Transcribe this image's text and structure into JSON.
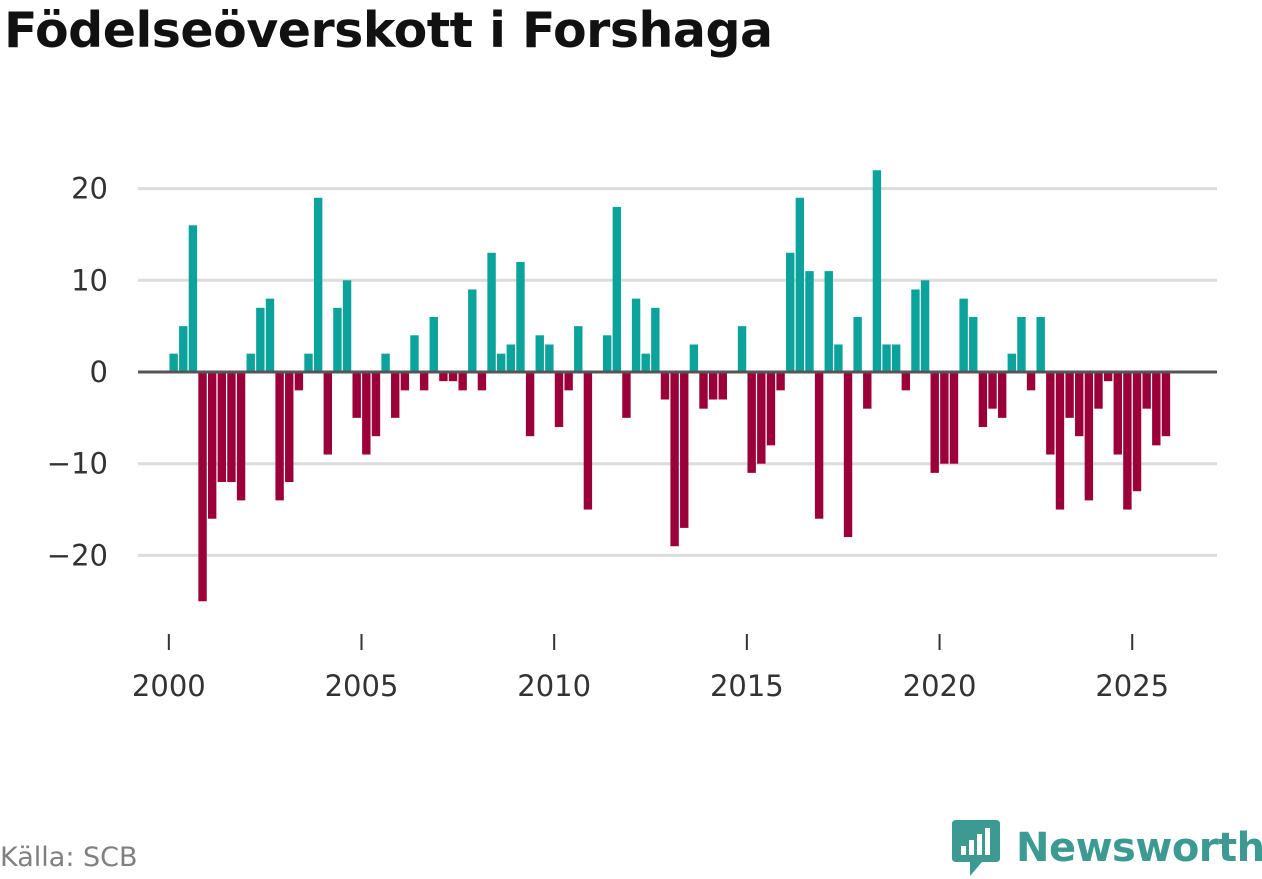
{
  "colors": {
    "positive": "#0ba39b",
    "negative": "#9c0039",
    "grid": "#dcdcdc",
    "zero": "#555555",
    "brand": "#3d9a92"
  },
  "chart_data": {
    "type": "bar",
    "title": "Födelseöverskott i Forshaga",
    "xlabel": "",
    "ylabel": "",
    "ylim": [
      -28,
      23
    ],
    "xlim": [
      1999.2,
      2027.2
    ],
    "yticks": [
      20,
      10,
      0,
      -10,
      -20
    ],
    "ytick_labels": [
      "20",
      "10",
      "0",
      "−10",
      "−20"
    ],
    "xticks": [
      2000,
      2005,
      2010,
      2015,
      2020,
      2025
    ],
    "xtick_labels": [
      "2000",
      "2005",
      "2010",
      "2015",
      "2020",
      "2025"
    ],
    "x": [
      2000.125,
      2000.375,
      2000.625,
      2000.875,
      2001.125,
      2001.375,
      2001.625,
      2001.875,
      2002.125,
      2002.375,
      2002.625,
      2002.875,
      2003.125,
      2003.375,
      2003.625,
      2003.875,
      2004.125,
      2004.375,
      2004.625,
      2004.875,
      2005.125,
      2005.375,
      2005.625,
      2005.875,
      2006.125,
      2006.375,
      2006.625,
      2006.875,
      2007.125,
      2007.375,
      2007.625,
      2007.875,
      2008.125,
      2008.375,
      2008.625,
      2008.875,
      2009.125,
      2009.375,
      2009.625,
      2009.875,
      2010.125,
      2010.375,
      2010.625,
      2010.875,
      2011.125,
      2011.375,
      2011.625,
      2011.875,
      2012.125,
      2012.375,
      2012.625,
      2012.875,
      2013.125,
      2013.375,
      2013.625,
      2013.875,
      2014.125,
      2014.375,
      2014.625,
      2014.875,
      2015.125,
      2015.375,
      2015.625,
      2015.875,
      2016.125,
      2016.375,
      2016.625,
      2016.875,
      2017.125,
      2017.375,
      2017.625,
      2017.875,
      2018.125,
      2018.375,
      2018.625,
      2018.875,
      2019.125,
      2019.375,
      2019.625,
      2019.875,
      2020.125,
      2020.375,
      2020.625,
      2020.875,
      2021.125,
      2021.375,
      2021.625,
      2021.875,
      2022.125,
      2022.375,
      2022.625,
      2022.875,
      2023.125,
      2023.375,
      2023.625,
      2023.875,
      2024.125,
      2024.375,
      2024.625,
      2024.875,
      2025.125,
      2025.375,
      2025.625,
      2025.875
    ],
    "values": [
      2,
      5,
      16,
      -25,
      -16,
      -12,
      -12,
      -14,
      2,
      7,
      8,
      -14,
      -12,
      -2,
      2,
      19,
      -9,
      7,
      10,
      -5,
      -9,
      -7,
      2,
      -5,
      -2,
      4,
      -2,
      6,
      -1,
      -1,
      -2,
      9,
      -2,
      13,
      2,
      3,
      12,
      -7,
      4,
      3,
      -6,
      -2,
      5,
      -15,
      0,
      4,
      18,
      -5,
      8,
      2,
      7,
      -3,
      -19,
      -17,
      3,
      -4,
      -3,
      -3,
      0,
      5,
      -11,
      -10,
      -8,
      -2,
      13,
      19,
      11,
      -16,
      11,
      3,
      -18,
      6,
      -4,
      22,
      3,
      3,
      -2,
      9,
      10,
      -11,
      -10,
      -10,
      8,
      6,
      -6,
      -4,
      -5,
      2,
      6,
      -2,
      6,
      -9,
      -15,
      -5,
      -7,
      -14,
      -4,
      -1,
      -9,
      -15,
      -13,
      -4,
      -8,
      -7
    ]
  },
  "footer": {
    "source": "Källa: SCB",
    "brand": "Newsworthy"
  }
}
